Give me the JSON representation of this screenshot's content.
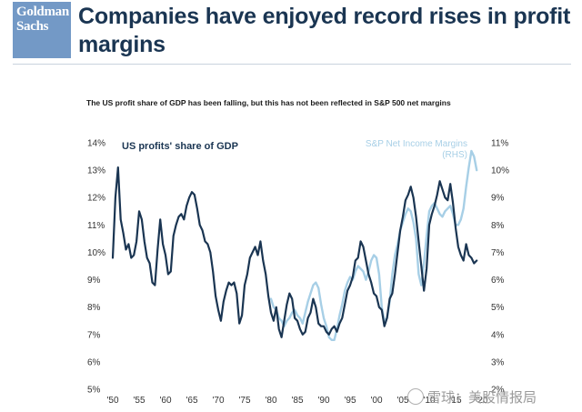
{
  "logo": {
    "line1": "Goldman",
    "line2": "Sachs"
  },
  "headline": "Companies have enjoyed record rises in profit margins",
  "subtitle": "The US profit share of GDP has been falling, but this has not been reflected in S&P 500 net margins",
  "watermark": "雪球：美股情报局",
  "colors": {
    "logo_bg": "#7399c6",
    "profits_series": "#1a3552",
    "margins_series": "#a7cfe6"
  },
  "chart_data": {
    "type": "line",
    "title": "",
    "x_ticks": [
      "'50",
      "'55",
      "'60",
      "'65",
      "'70",
      "'75",
      "'80",
      "'85",
      "'90",
      "'95",
      "'00",
      "'05",
      "'10",
      "'15",
      "'20"
    ],
    "xlim": [
      1950,
      2020
    ],
    "left_axis": {
      "ticks": [
        "14%",
        "13%",
        "12%",
        "11%",
        "10%",
        "9%",
        "8%",
        "7%",
        "6%",
        "5%"
      ],
      "ylim": [
        5,
        14
      ]
    },
    "right_axis": {
      "ticks": [
        "11%",
        "10%",
        "9%",
        "8%",
        "7%",
        "6%",
        "5%",
        "4%",
        "3%",
        "2%"
      ],
      "ylim": [
        2,
        11
      ]
    },
    "legend": {
      "left_label": "US profits' share of GDP",
      "right_label_1": "S&P Net Income Margins",
      "right_label_2": "(RHS)"
    },
    "series": [
      {
        "name": "US profits' share of GDP",
        "axis": "left",
        "x": [
          1950,
          1950.5,
          1951,
          1951.5,
          1952,
          1952.5,
          1953,
          1953.5,
          1954,
          1954.5,
          1955,
          1955.5,
          1956,
          1956.5,
          1957,
          1957.5,
          1958,
          1958.5,
          1959,
          1959.5,
          1960,
          1960.5,
          1961,
          1961.5,
          1962,
          1962.5,
          1963,
          1963.5,
          1964,
          1964.5,
          1965,
          1965.5,
          1966,
          1966.5,
          1967,
          1967.5,
          1968,
          1968.5,
          1969,
          1969.5,
          1970,
          1970.5,
          1971,
          1971.5,
          1972,
          1972.5,
          1973,
          1973.5,
          1974,
          1974.5,
          1975,
          1975.5,
          1976,
          1976.5,
          1977,
          1977.5,
          1978,
          1978.5,
          1979,
          1979.5,
          1980,
          1980.5,
          1981,
          1981.5,
          1982,
          1982.5,
          1983,
          1983.5,
          1984,
          1984.5,
          1985,
          1985.5,
          1986,
          1986.5,
          1987,
          1987.5,
          1988,
          1988.5,
          1989,
          1989.5,
          1990,
          1990.5,
          1991,
          1991.5,
          1992,
          1992.5,
          1993,
          1993.5,
          1994,
          1994.5,
          1995,
          1995.5,
          1996,
          1996.5,
          1997,
          1997.5,
          1998,
          1998.5,
          1999,
          1999.5,
          2000,
          2000.5,
          2001,
          2001.5,
          2002,
          2002.5,
          2003,
          2003.5,
          2004,
          2004.5,
          2005,
          2005.5,
          2006,
          2006.5,
          2007,
          2007.5,
          2008,
          2008.5,
          2009,
          2009.5,
          2010,
          2010.5,
          2011,
          2011.5,
          2012,
          2012.5,
          2013,
          2013.5,
          2014,
          2014.5,
          2015,
          2015.5,
          2016,
          2016.5,
          2017,
          2017.5,
          2018,
          2018.5,
          2019
        ],
        "values": [
          9.8,
          12.0,
          13.1,
          11.2,
          10.7,
          10.1,
          10.3,
          9.8,
          9.9,
          10.4,
          11.5,
          11.2,
          10.4,
          9.8,
          9.6,
          8.9,
          8.8,
          10.1,
          11.2,
          10.3,
          9.9,
          9.2,
          9.3,
          10.6,
          11.0,
          11.3,
          11.4,
          11.2,
          11.7,
          12.0,
          12.2,
          12.1,
          11.6,
          11.0,
          10.8,
          10.4,
          10.3,
          10.0,
          9.3,
          8.4,
          7.9,
          7.5,
          8.2,
          8.6,
          8.9,
          8.8,
          8.9,
          8.5,
          7.4,
          7.7,
          8.8,
          9.2,
          9.8,
          10.0,
          10.2,
          9.9,
          10.4,
          9.7,
          9.2,
          8.4,
          7.8,
          7.5,
          8.0,
          7.2,
          6.9,
          7.5,
          8.1,
          8.5,
          8.3,
          7.6,
          7.5,
          7.2,
          7.0,
          7.1,
          7.6,
          7.8,
          8.3,
          8.0,
          7.4,
          7.3,
          7.3,
          7.1,
          7.0,
          7.2,
          7.3,
          7.1,
          7.4,
          7.6,
          8.1,
          8.6,
          8.8,
          9.1,
          9.7,
          9.8,
          10.4,
          10.2,
          9.7,
          9.2,
          8.9,
          8.5,
          8.4,
          8.0,
          7.9,
          7.3,
          7.6,
          8.3,
          8.5,
          9.2,
          10.0,
          10.8,
          11.3,
          11.9,
          12.1,
          12.4,
          12.0,
          11.3,
          10.4,
          9.5,
          8.6,
          9.4,
          11.0,
          11.4,
          11.7,
          12.1,
          12.6,
          12.3,
          12.0,
          11.9,
          12.5,
          11.8,
          10.9,
          10.2,
          9.9,
          9.7,
          10.3,
          9.9,
          9.8,
          9.6,
          9.7
        ],
        "color": "#1a3552"
      },
      {
        "name": "S&P Net Income Margins (RHS)",
        "axis": "right",
        "x": [
          1980,
          1980.5,
          1981,
          1981.5,
          1982,
          1982.5,
          1983,
          1983.5,
          1984,
          1984.5,
          1985,
          1985.5,
          1986,
          1986.5,
          1987,
          1987.5,
          1988,
          1988.5,
          1989,
          1989.5,
          1990,
          1990.5,
          1991,
          1991.5,
          1992,
          1992.5,
          1993,
          1993.5,
          1994,
          1994.5,
          1995,
          1995.5,
          1996,
          1996.5,
          1997,
          1997.5,
          1998,
          1998.5,
          1999,
          1999.5,
          2000,
          2000.5,
          2001,
          2001.5,
          2002,
          2002.5,
          2003,
          2003.5,
          2004,
          2004.5,
          2005,
          2005.5,
          2006,
          2006.5,
          2007,
          2007.5,
          2008,
          2008.5,
          2009,
          2009.5,
          2010,
          2010.5,
          2011,
          2011.5,
          2012,
          2012.5,
          2013,
          2013.5,
          2014,
          2014.5,
          2015,
          2015.5,
          2016,
          2016.5,
          2017,
          2017.5,
          2018,
          2018.5,
          2019
        ],
        "values": [
          5.3,
          5.0,
          4.9,
          4.6,
          4.5,
          4.3,
          4.5,
          4.6,
          4.8,
          4.9,
          4.7,
          4.6,
          4.4,
          4.8,
          5.2,
          5.5,
          5.8,
          5.9,
          5.7,
          5.1,
          4.6,
          4.3,
          3.9,
          3.8,
          3.8,
          4.2,
          4.7,
          5.1,
          5.6,
          5.9,
          6.1,
          6.0,
          6.3,
          6.5,
          6.4,
          6.3,
          6.0,
          6.3,
          6.7,
          6.9,
          6.8,
          6.2,
          5.0,
          4.5,
          4.6,
          5.2,
          6.2,
          6.9,
          7.3,
          7.8,
          8.1,
          8.4,
          8.6,
          8.5,
          8.1,
          7.5,
          6.2,
          5.8,
          6.6,
          7.6,
          8.5,
          8.7,
          8.8,
          8.6,
          8.4,
          8.3,
          8.5,
          8.6,
          8.7,
          8.4,
          8.0,
          8.0,
          8.2,
          8.6,
          9.4,
          10.1,
          10.7,
          10.5,
          10.0
        ],
        "color": "#a7cfe6"
      }
    ],
    "grid": false
  }
}
